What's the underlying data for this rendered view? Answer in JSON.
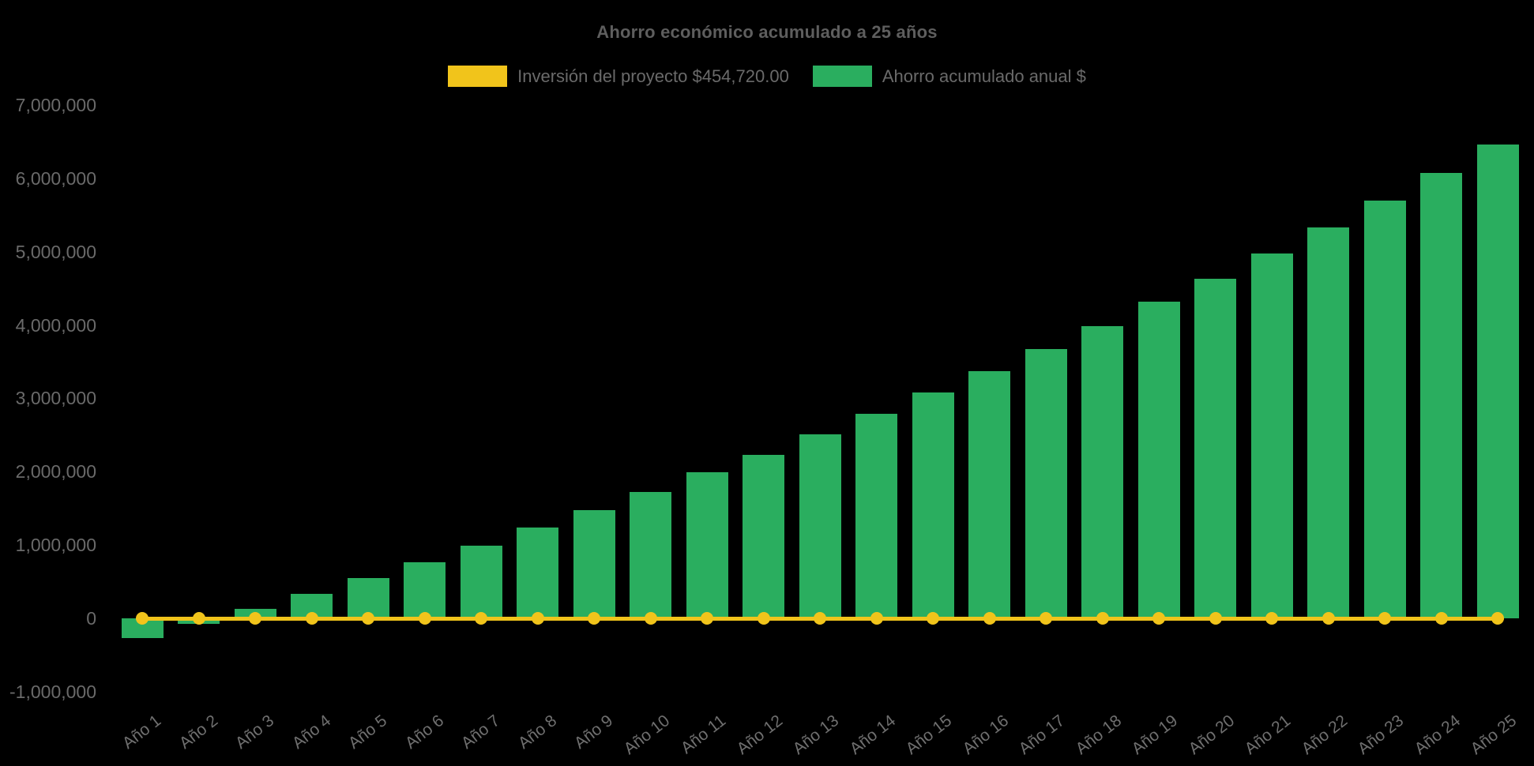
{
  "title": "Ahorro económico acumulado a 25 años",
  "background_color": "#000000",
  "text_colors": {
    "title": "#5e5e5e",
    "axis_labels": "#6a6a6a"
  },
  "legend": [
    {
      "label": "Inversión del proyecto $454,720.00",
      "color": "#F1C41B",
      "series_type": "line"
    },
    {
      "label": "Ahorro acumulado anual $",
      "color": "#2AAE5F",
      "series_type": "bar"
    }
  ],
  "chart_data": {
    "type": "bar",
    "title": "Ahorro económico acumulado a 25 años",
    "xlabel": "",
    "ylabel": "",
    "grid": false,
    "legend_position": "top",
    "ylim": [
      -1000000,
      7000000
    ],
    "ytick_values": [
      7000000,
      6000000,
      5000000,
      4000000,
      3000000,
      2000000,
      1000000,
      0,
      -1000000
    ],
    "ytick_labels": [
      "7,000,000",
      "6,000,000",
      "5,000,000",
      "4,000,000",
      "3,000,000",
      "2,000,000",
      "1,000,000",
      "0",
      "-1,000,000"
    ],
    "categories": [
      "Año 1",
      "Año 2",
      "Año 3",
      "Año 4",
      "Año 5",
      "Año 6",
      "Año 7",
      "Año 8",
      "Año 9",
      "Año 10",
      "Año 11",
      "Año 12",
      "Año 13",
      "Año 14",
      "Año 15",
      "Año 16",
      "Año 17",
      "Año 18",
      "Año 19",
      "Año 20",
      "Año 21",
      "Año 22",
      "Año 23",
      "Año 24",
      "Año 25"
    ],
    "series": [
      {
        "name": "Ahorro acumulado anual $",
        "type": "bar",
        "color": "#2AAE5F",
        "values": [
          -270000,
          -80000,
          130000,
          330000,
          550000,
          770000,
          990000,
          1240000,
          1480000,
          1720000,
          1990000,
          2230000,
          2510000,
          2790000,
          3080000,
          3370000,
          3670000,
          3990000,
          4320000,
          4630000,
          4980000,
          5330000,
          5700000,
          6070000,
          6460000
        ]
      },
      {
        "name": "Inversión del proyecto $454,720.00",
        "type": "line",
        "color": "#F1C41B",
        "marker": "circle",
        "plotted_level": 0,
        "values": [
          0,
          0,
          0,
          0,
          0,
          0,
          0,
          0,
          0,
          0,
          0,
          0,
          0,
          0,
          0,
          0,
          0,
          0,
          0,
          0,
          0,
          0,
          0,
          0,
          0
        ]
      }
    ]
  }
}
